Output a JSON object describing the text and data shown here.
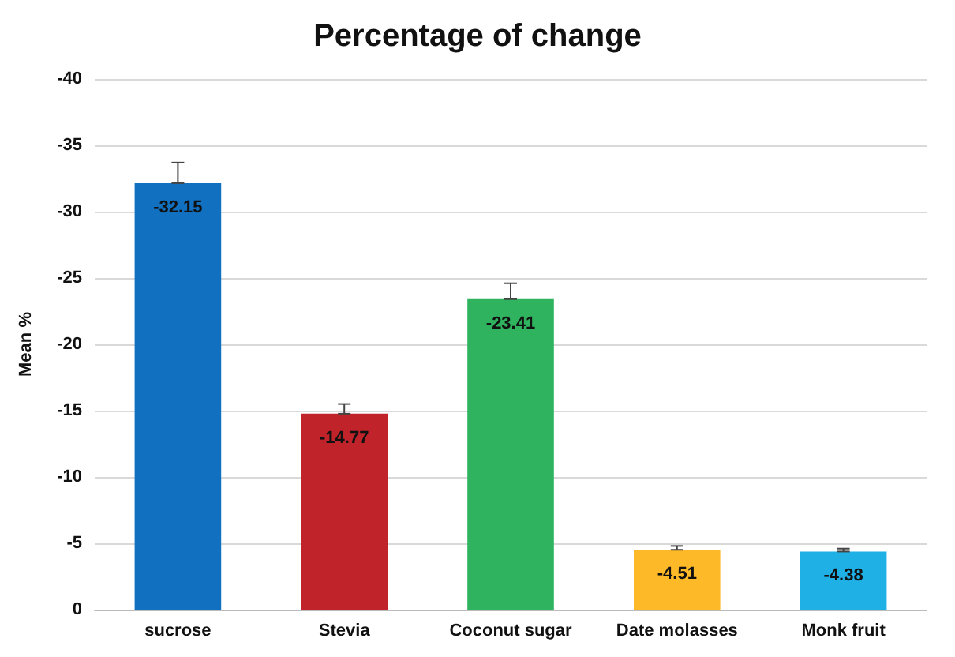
{
  "chart_data": {
    "type": "bar",
    "title": "Percentage of change",
    "ylabel": "Mean %",
    "categories": [
      "sucrose",
      "Stevia",
      "Coconut sugar",
      "Date molasses",
      "Monk fruit"
    ],
    "values": [
      -32.15,
      -14.77,
      -23.41,
      -4.51,
      -4.38
    ],
    "colors": [
      "#1170c0",
      "#c0242a",
      "#2fb35e",
      "#fdb927",
      "#1fb0e6"
    ],
    "errors": [
      [
        -33.7,
        -32.15
      ],
      [
        -15.5,
        -14.77
      ],
      [
        -24.6,
        -23.41
      ],
      [
        -4.8,
        -4.51
      ],
      [
        -4.6,
        -4.38
      ]
    ],
    "ylim": [
      0,
      -40
    ],
    "yticks": [
      0,
      -5,
      -10,
      -15,
      -20,
      -25,
      -30,
      -35,
      -40
    ],
    "grid": "y",
    "data_labels": true
  }
}
